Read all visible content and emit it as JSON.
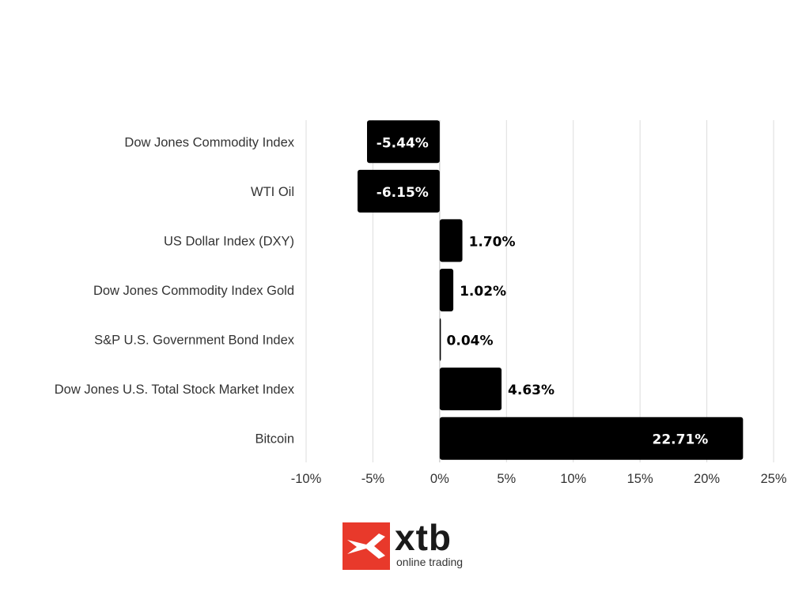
{
  "chart_data": {
    "type": "bar",
    "orientation": "horizontal",
    "title": "",
    "xlabel": "",
    "ylabel": "",
    "categories": [
      "Dow Jones Commodity Index",
      "WTI Oil",
      "US Dollar Index (DXY)",
      "Dow Jones Commodity Index Gold",
      "S&P U.S. Government Bond Index",
      "Dow Jones U.S. Total Stock Market Index",
      "Bitcoin"
    ],
    "values": [
      -5.44,
      -6.15,
      1.7,
      1.02,
      0.04,
      4.63,
      22.71
    ],
    "data_labels": [
      "-5.44%",
      "-6.15%",
      "1.70%",
      "1.02%",
      "0.04%",
      "4.63%",
      "22.71%"
    ],
    "xlim": [
      -10,
      25
    ],
    "x_ticks": [
      -10,
      -5,
      0,
      5,
      10,
      15,
      20,
      25
    ],
    "x_tick_labels": [
      "-10%",
      "-5%",
      "0%",
      "5%",
      "10%",
      "15%",
      "20%",
      "25%"
    ],
    "grid": true,
    "bar_color": "#000000"
  },
  "logo": {
    "word": "xtb",
    "tagline": "online trading",
    "color": "#e8392b"
  }
}
